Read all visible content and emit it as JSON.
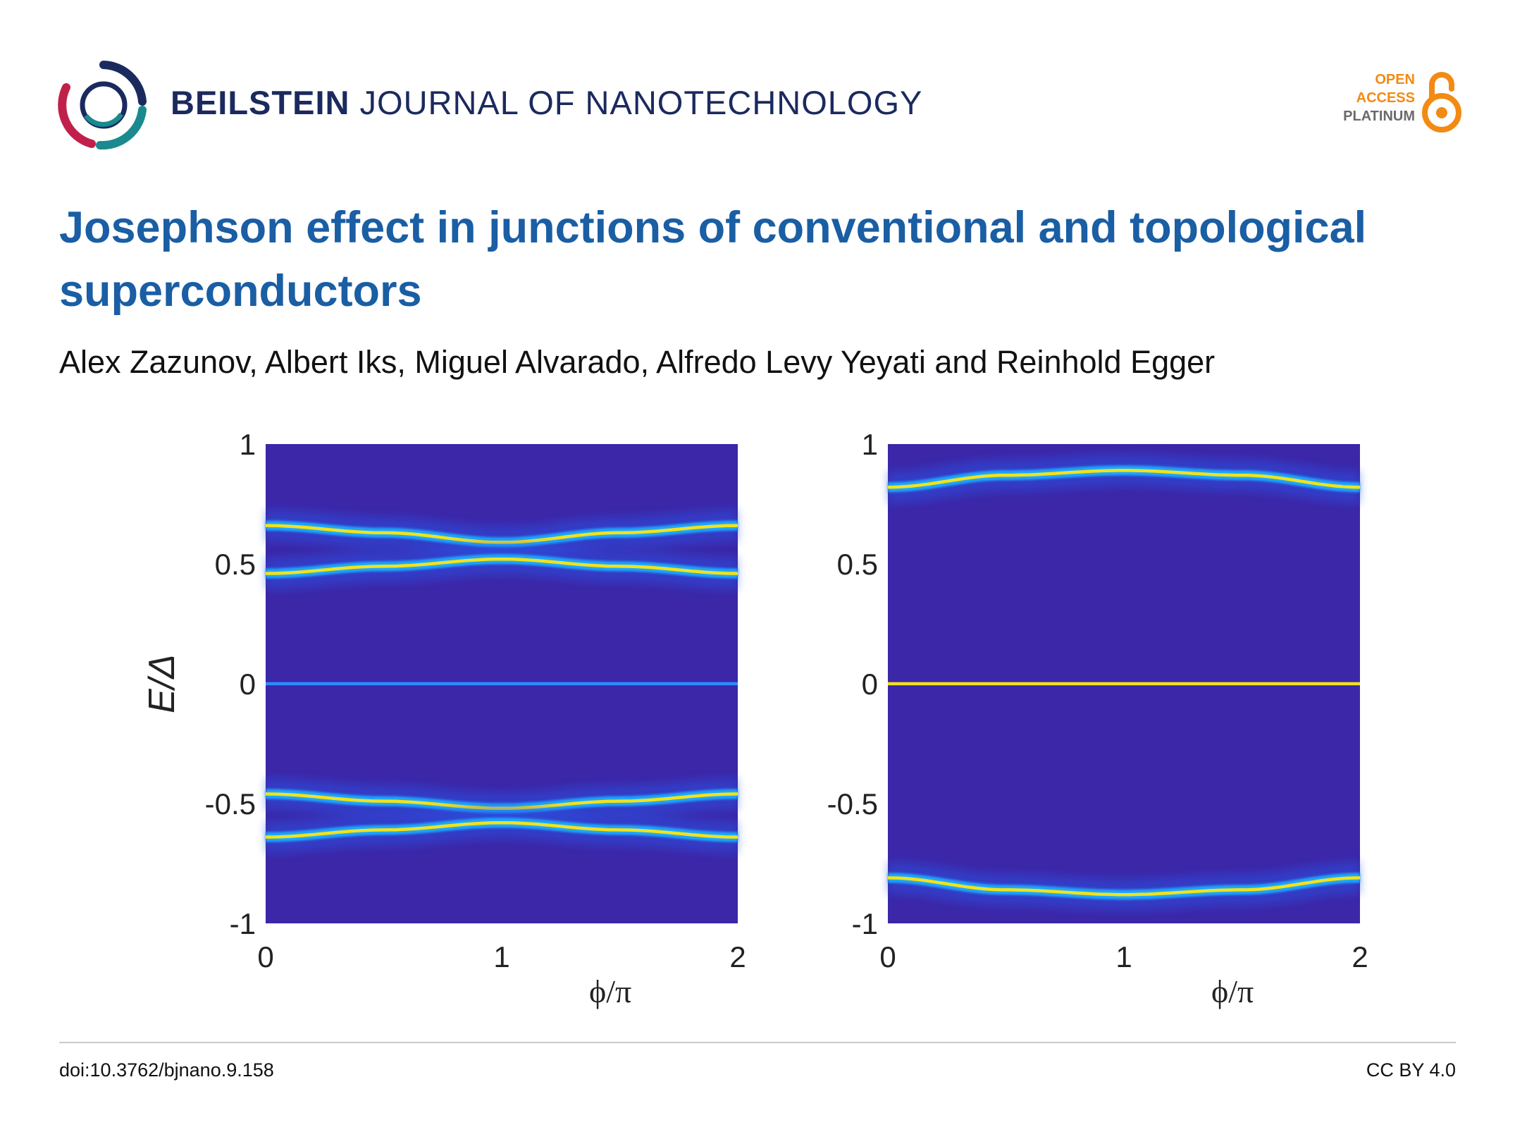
{
  "header": {
    "journal_bold": "BEILSTEIN",
    "journal_rest": "JOURNAL OF NANOTECHNOLOGY",
    "badge": {
      "open": "OPEN",
      "access": "ACCESS",
      "platinum": "PLATINUM"
    }
  },
  "article": {
    "title": "Josephson effect in junctions of conventional and topological superconductors",
    "authors": "Alex Zazunov, Albert Iks, Miguel Alvarado, Alfredo Levy Yeyati and Reinhold Egger"
  },
  "footer": {
    "doi": "doi:10.3762/bjnano.9.158",
    "license": "CC BY 4.0"
  },
  "colors": {
    "title": "#1a5ea4",
    "journal": "#1b2a5e",
    "badge_orange": "#f28a14",
    "heatmap_bg": "#3b27a8",
    "heatmap_peak": "#f2e21b"
  },
  "chart_data": [
    {
      "type": "heatmap",
      "xlabel": "ϕ/π",
      "ylabel": "E/Δ",
      "xlim": [
        0,
        2
      ],
      "ylim": [
        -1,
        1
      ],
      "x_ticks": [
        "0",
        "1",
        "2"
      ],
      "y_ticks": [
        "1",
        "0.5",
        "0",
        "-0.5",
        "-1"
      ],
      "series": [
        {
          "x": [
            0,
            0.5,
            1,
            1.5,
            2
          ],
          "y": [
            0.66,
            0.63,
            0.59,
            0.63,
            0.66
          ]
        },
        {
          "x": [
            0,
            0.5,
            1,
            1.5,
            2
          ],
          "y": [
            0.46,
            0.49,
            0.52,
            0.49,
            0.46
          ]
        },
        {
          "x": [
            0,
            0.5,
            1,
            1.5,
            2
          ],
          "y": [
            0.0,
            0.0,
            0.0,
            0.0,
            0.0
          ]
        },
        {
          "x": [
            0,
            0.5,
            1,
            1.5,
            2
          ],
          "y": [
            -0.46,
            -0.49,
            -0.52,
            -0.49,
            -0.46
          ]
        },
        {
          "x": [
            0,
            0.5,
            1,
            1.5,
            2
          ],
          "y": [
            -0.64,
            -0.61,
            -0.58,
            -0.61,
            -0.64
          ]
        }
      ]
    },
    {
      "type": "heatmap",
      "xlabel": "ϕ/π",
      "ylabel": "",
      "xlim": [
        0,
        2
      ],
      "ylim": [
        -1,
        1
      ],
      "x_ticks": [
        "0",
        "1",
        "2"
      ],
      "y_ticks": [
        "1",
        "0.5",
        "0",
        "-0.5",
        "-1"
      ],
      "series": [
        {
          "x": [
            0,
            0.5,
            1,
            1.5,
            2
          ],
          "y": [
            0.82,
            0.87,
            0.89,
            0.87,
            0.82
          ]
        },
        {
          "x": [
            0,
            0.5,
            1,
            1.5,
            2
          ],
          "y": [
            0.0,
            0.0,
            0.0,
            0.0,
            0.0
          ]
        },
        {
          "x": [
            0,
            0.5,
            1,
            1.5,
            2
          ],
          "y": [
            -0.81,
            -0.86,
            -0.88,
            -0.86,
            -0.81
          ]
        }
      ]
    }
  ]
}
